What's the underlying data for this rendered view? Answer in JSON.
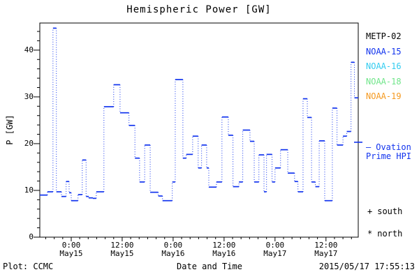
{
  "footer": {
    "credit": "Plot: CCMC",
    "timestamp": "2015/05/17 17:55:13"
  },
  "legend": {
    "satellites": [
      {
        "label": "METP-02",
        "color": "#000000"
      },
      {
        "label": "NOAA-15",
        "color": "#1133ee"
      },
      {
        "label": "NOAA-16",
        "color": "#33ccf0"
      },
      {
        "label": "NOAA-18",
        "color": "#70e58a"
      },
      {
        "label": "NOAA-19",
        "color": "#f5991f"
      }
    ],
    "ovation": {
      "marker": "—",
      "line1": "Ovation",
      "line2": "Prime HPI",
      "color": "#1133ee",
      "marker_value_gw": 20.3
    },
    "markers": {
      "south": {
        "symbol": "+",
        "label": "south"
      },
      "north": {
        "symbol": "*",
        "label": "north"
      }
    }
  },
  "chart_data": {
    "type": "line",
    "subtype": "step-post with solid level dashes and dotted vertical connectors",
    "title": "Hemispheric Power [GW]",
    "xlabel": "Date and Time",
    "ylabel": "P [GW]",
    "x_unit": "hours since 2015-05-15 00:00",
    "xlim_hours": [
      -7.4,
      67.6
    ],
    "ylim": [
      0,
      45.8
    ],
    "y_major_ticks": [
      0,
      10,
      20,
      30,
      40
    ],
    "y_minor_step": 2,
    "x_minor_step_hours": 2,
    "x_ticks": [
      {
        "hours": 0,
        "time": "0:00",
        "date": "May15"
      },
      {
        "hours": 12,
        "time": "12:00",
        "date": "May15"
      },
      {
        "hours": 24,
        "time": "0:00",
        "date": "May16"
      },
      {
        "hours": 36,
        "time": "12:00",
        "date": "May16"
      },
      {
        "hours": 48,
        "time": "0:00",
        "date": "May17"
      },
      {
        "hours": 60,
        "time": "12:00",
        "date": "May17"
      }
    ],
    "grid": false,
    "legend_position": "right-outside",
    "series": [
      {
        "name": "Ovation Prime HPI",
        "color": "#1133ee",
        "step_start_hours": [
          -7.4,
          -5.6,
          -4.3,
          -3.5,
          -2.3,
          -1.2,
          -0.5,
          0.0,
          1.6,
          2.6,
          3.5,
          4.1,
          5.1,
          5.9,
          7.7,
          10.0,
          11.5,
          13.6,
          15.0,
          16.1,
          17.3,
          18.6,
          20.5,
          21.5,
          23.8,
          24.5,
          26.3,
          27.1,
          28.6,
          29.9,
          30.7,
          31.9,
          32.4,
          34.2,
          35.5,
          37.0,
          38.1,
          39.5,
          40.4,
          42.1,
          43.1,
          44.2,
          45.4,
          46.0,
          47.3,
          48.0,
          49.3,
          51.0,
          52.6,
          53.4,
          54.6,
          55.6,
          56.6,
          57.5,
          58.4,
          59.7,
          61.5,
          62.6,
          64.0,
          64.9,
          65.9,
          66.7
        ],
        "values_gw": [
          9.0,
          9.7,
          44.7,
          9.7,
          8.7,
          11.9,
          9.5,
          7.8,
          9.1,
          16.5,
          8.7,
          8.4,
          8.3,
          9.7,
          27.9,
          32.6,
          26.6,
          23.9,
          16.9,
          11.8,
          19.7,
          9.6,
          8.8,
          7.8,
          11.8,
          33.7,
          16.9,
          17.7,
          21.6,
          14.8,
          19.7,
          14.8,
          10.7,
          11.8,
          25.7,
          21.8,
          10.8,
          11.8,
          22.9,
          20.5,
          11.8,
          17.6,
          9.7,
          17.7,
          11.8,
          14.8,
          18.7,
          13.7,
          11.9,
          9.7,
          29.6,
          25.6,
          11.8,
          10.8,
          20.6,
          7.8,
          27.6,
          19.7,
          21.6,
          22.6,
          37.4,
          29.8
        ]
      }
    ]
  }
}
